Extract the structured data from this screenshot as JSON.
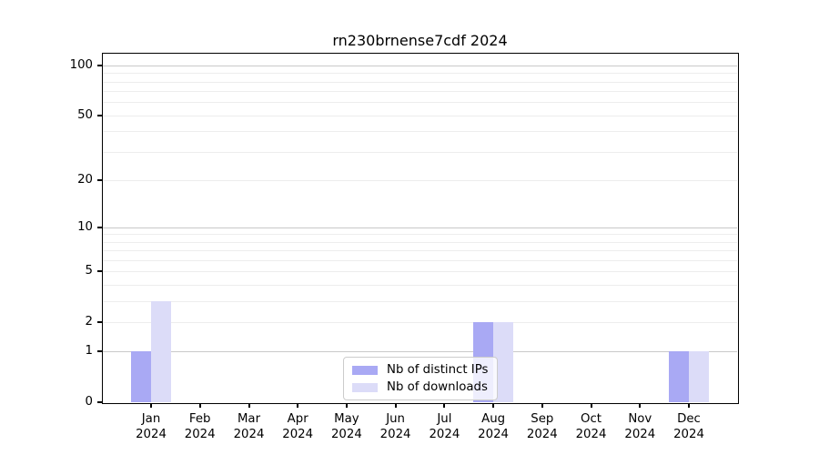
{
  "title": "rn230brnense7cdf 2024",
  "chart_data": {
    "type": "bar",
    "title": "rn230brnense7cdf 2024",
    "scale": "log1p",
    "xlabel": "",
    "ylabel": "",
    "categories": [
      "Jan 2024",
      "Feb 2024",
      "Mar 2024",
      "Apr 2024",
      "May 2024",
      "Jun 2024",
      "Jul 2024",
      "Aug 2024",
      "Sep 2024",
      "Oct 2024",
      "Nov 2024",
      "Dec 2024"
    ],
    "series": [
      {
        "name": "Nb of distinct IPs",
        "color": "#a9a9f4",
        "values": [
          1,
          0,
          0,
          0,
          0,
          0,
          0,
          2,
          0,
          0,
          0,
          1
        ]
      },
      {
        "name": "Nb of downloads",
        "color": "#dcdcf8",
        "values": [
          3,
          0,
          0,
          0,
          0,
          0,
          0,
          2,
          0,
          0,
          0,
          1
        ]
      }
    ],
    "yticks": [
      100,
      50,
      20,
      10,
      5,
      2,
      1,
      0
    ],
    "ylim": [
      0,
      119
    ],
    "grid": {
      "major_values": [
        1,
        10,
        100
      ],
      "minor_values": [
        2,
        3,
        4,
        5,
        6,
        7,
        8,
        9,
        20,
        30,
        40,
        50,
        60,
        70,
        80,
        90
      ]
    },
    "legend_position": "inside-bottom-center"
  },
  "colors": {
    "background": "#ffffff",
    "spine": "#000000",
    "major_grid": "#c9c9c9",
    "minor_grid": "#ededed",
    "text": "#000000",
    "legend_border": "#cccccc"
  }
}
